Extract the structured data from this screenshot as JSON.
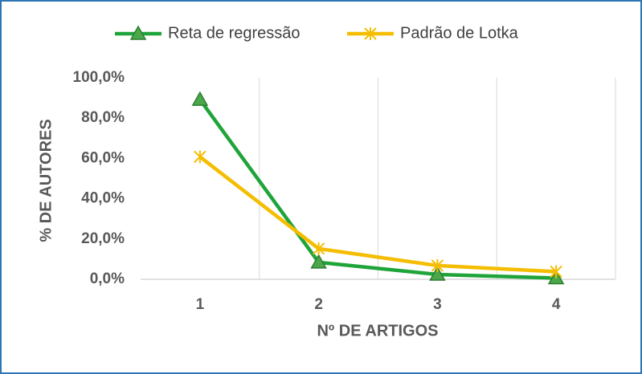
{
  "chart_data": {
    "type": "line",
    "categories": [
      "1",
      "2",
      "3",
      "4"
    ],
    "series": [
      {
        "name": "Reta de regressão",
        "color": "#1fa43a",
        "marker": "triangle",
        "values": [
          89.2,
          8.4,
          2.4,
          0.6
        ]
      },
      {
        "name": "Padrão de Lotka",
        "color": "#f5bd00",
        "marker": "star",
        "values": [
          60.8,
          15.2,
          6.8,
          3.8
        ]
      }
    ],
    "x_label": "Nº DE ARTIGOS",
    "y_label": "% DE AUTORES",
    "ylim": [
      0,
      100
    ],
    "yticks": [
      {
        "value": 0,
        "label": "0,0%"
      },
      {
        "value": 20,
        "label": "20,0%"
      },
      {
        "value": 40,
        "label": "40,0%"
      },
      {
        "value": 60,
        "label": "60,0%"
      },
      {
        "value": 80,
        "label": "80,0%"
      },
      {
        "value": 100,
        "label": "100,0%"
      }
    ],
    "legend": "top"
  }
}
